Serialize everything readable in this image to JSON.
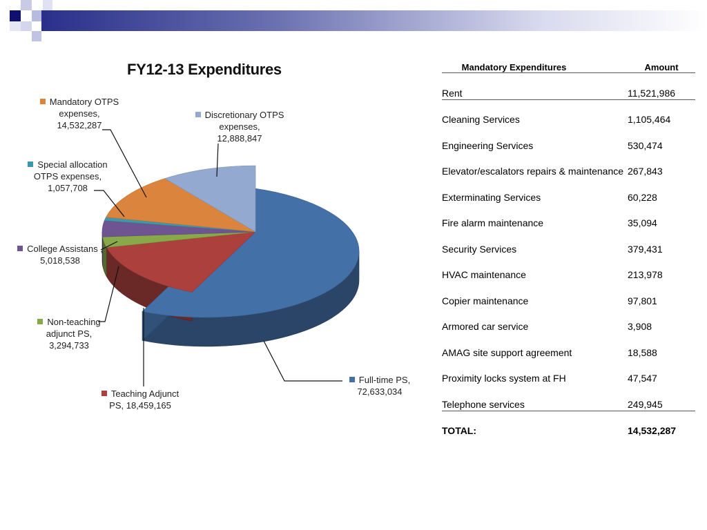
{
  "chart_data": {
    "type": "pie",
    "title": "FY12-13 Expenditures",
    "slices": [
      {
        "label": "Full-time PS,",
        "value": 72633034,
        "value_text": "72,633,034",
        "color": "#4470A8"
      },
      {
        "label": "Teaching Adjunct PS,",
        "value": 18459165,
        "value_text": "18,459,165",
        "color": "#AB403D"
      },
      {
        "label": "Non-teaching adjunct PS,",
        "value": 3294733,
        "value_text": "3,294,733",
        "color": "#89A84A"
      },
      {
        "label": "College Assistans ,",
        "value": 5018538,
        "value_text": "5,018,538",
        "color": "#6E5592"
      },
      {
        "label": "Special allocation OTPS expenses,",
        "value": 1057708,
        "value_text": "1,057,708",
        "color": "#3D98AC"
      },
      {
        "label": "Mandatory OTPS expenses,",
        "value": 14532287,
        "value_text": "14,532,287",
        "color": "#DB843D"
      },
      {
        "label": "Discretionary OTPS expenses,",
        "value": 12888847,
        "value_text": "12,888,847",
        "color": "#94A9CF"
      }
    ],
    "callouts": {
      "mandatory": [
        "Mandatory OTPS",
        "expenses,",
        "14,532,287"
      ],
      "discretionary": [
        "Discretionary OTPS",
        "expenses,",
        "12,888,847"
      ],
      "special": [
        "Special allocation",
        "OTPS expenses,",
        "1,057,708"
      ],
      "college": [
        "College Assistans ,",
        "5,018,538"
      ],
      "nonteaching": [
        "Non-teaching",
        "adjunct PS,",
        "3,294,733"
      ],
      "teaching": [
        "Teaching  Adjunct",
        "PS,  18,459,165"
      ],
      "fulltime": [
        "Full-time  PS,",
        "72,633,034"
      ]
    }
  },
  "table": {
    "headers": [
      "Mandatory Expenditures",
      "Amount"
    ],
    "rows": [
      {
        "item": "Rent",
        "amount": "11,521,986"
      },
      {
        "item": "Cleaning Services",
        "amount": "1,105,464"
      },
      {
        "item": "Engineering Services",
        "amount": "530,474"
      },
      {
        "item": "Elevator/escalators repairs & maintenance",
        "amount": "267,843"
      },
      {
        "item": "Exterminating Services",
        "amount": "60,228"
      },
      {
        "item": "Fire alarm maintenance",
        "amount": "35,094"
      },
      {
        "item": "Security Services",
        "amount": "379,431"
      },
      {
        "item": "HVAC maintenance",
        "amount": "213,978"
      },
      {
        "item": "Copier maintenance",
        "amount": "97,801"
      },
      {
        "item": "Armored car service",
        "amount": "3,908"
      },
      {
        "item": "AMAG site support agreement",
        "amount": "18,588"
      },
      {
        "item": "Proximity locks system at FH",
        "amount": "47,547"
      },
      {
        "item": "Telephone services",
        "amount": "249,945"
      }
    ],
    "total_label": "TOTAL:",
    "total_amount": "14,532,287"
  }
}
